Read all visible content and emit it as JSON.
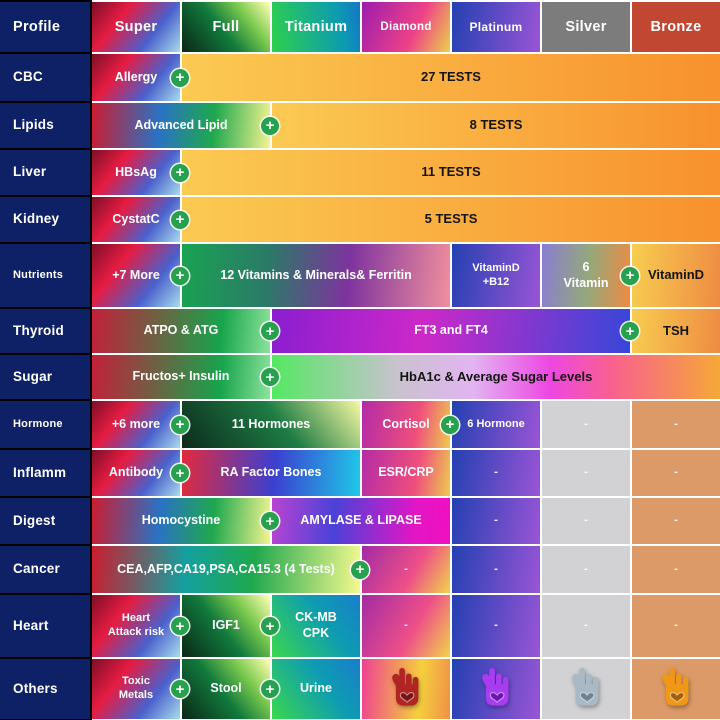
{
  "plus_symbol": "+",
  "palette": {
    "label_navy": "#0e2166",
    "plus_green": "#27a14d",
    "tests_orange": "#f8912e",
    "silver_header": "#7c7c7c",
    "bronze_header": "#c14732",
    "silver_cell": "#d2d2d4",
    "bronze_cell": "#dc9a68"
  },
  "chart_data": {
    "type": "table",
    "title": "Health checkup profile comparison",
    "columns": [
      {
        "label": "Profile",
        "bg": "navy"
      },
      {
        "label": "Super",
        "bg": "super"
      },
      {
        "label": "Full",
        "bg": "full"
      },
      {
        "label": "Titanium",
        "bg": "titanium"
      },
      {
        "label": "Diamond",
        "bg": "diamond"
      },
      {
        "label": "Platinum",
        "bg": "platinum"
      },
      {
        "label": "Silver",
        "bg": "silver"
      },
      {
        "label": "Bronze",
        "bg": "bronze"
      }
    ],
    "rows": [
      {
        "label": "CBC",
        "cells": [
          {
            "text": "Allergy",
            "span": 1,
            "bg": "super",
            "plus": true
          },
          {
            "text": "27 TESTS",
            "span": 6,
            "bg": "tests",
            "dark": true
          }
        ]
      },
      {
        "label": "Lipids",
        "cells": [
          {
            "text": "Advanced Lipid",
            "span": 2,
            "bg": "advlipid",
            "plus": true
          },
          {
            "text": "8 TESTS",
            "span": 5,
            "bg": "tests",
            "dark": true
          }
        ]
      },
      {
        "label": "Liver",
        "cells": [
          {
            "text": "HBsAg",
            "span": 1,
            "bg": "super",
            "plus": true
          },
          {
            "text": "11 TESTS",
            "span": 6,
            "bg": "tests",
            "dark": true
          }
        ]
      },
      {
        "label": "Kidney",
        "cells": [
          {
            "text": "CystatC",
            "span": 1,
            "bg": "super",
            "plus": true
          },
          {
            "text": "5 TESTS",
            "span": 6,
            "bg": "tests",
            "dark": true
          }
        ]
      },
      {
        "label": "Nutrients",
        "cells": [
          {
            "text": "+7 More",
            "span": 1,
            "bg": "super",
            "plus": true
          },
          {
            "text": "12 Vitamins & Minerals& Ferritin",
            "span": 3,
            "bg": "vits12"
          },
          {
            "text": "VitaminD\n+B12",
            "span": 1,
            "bg": "platinum",
            "small": true
          },
          {
            "text": "6\nVitamin",
            "span": 1,
            "bg": "sixvit",
            "plus": true
          },
          {
            "text": "VitaminD",
            "span": 1,
            "bg": "gold",
            "dark": true
          }
        ]
      },
      {
        "label": "Thyroid",
        "cells": [
          {
            "text": "ATPO & ATG",
            "span": 2,
            "bg": "redgreen",
            "plus": true
          },
          {
            "text": "FT3 and FT4",
            "span": 4,
            "bg": "ft34",
            "plus": true
          },
          {
            "text": "TSH",
            "span": 1,
            "bg": "gold",
            "dark": true
          }
        ]
      },
      {
        "label": "Sugar",
        "cells": [
          {
            "text": "Fructos+ Insulin",
            "span": 2,
            "bg": "redgreen",
            "plus": true
          },
          {
            "text": "HbA1c & Average Sugar Levels",
            "span": 5,
            "bg": "hba1c",
            "dark": true
          }
        ]
      },
      {
        "label": "Hormone",
        "cells": [
          {
            "text": "+6 more",
            "span": 1,
            "bg": "super",
            "plus": true
          },
          {
            "text": "11 Hormones",
            "span": 2,
            "bg": "hormones11"
          },
          {
            "text": "Cortisol",
            "span": 1,
            "bg": "cortisol",
            "plus": true
          },
          {
            "text": "6 Hormone",
            "span": 1,
            "bg": "platinum",
            "small": true
          },
          {
            "text": "-",
            "span": 1,
            "bg": "silvercell",
            "dash": true
          },
          {
            "text": "-",
            "span": 1,
            "bg": "bronzecell",
            "dash": true
          }
        ]
      },
      {
        "label": "Inflamm",
        "cells": [
          {
            "text": "Antibody",
            "span": 1,
            "bg": "super",
            "plus": true
          },
          {
            "text": "RA Factor Bones",
            "span": 2,
            "bg": "rafactor"
          },
          {
            "text": "ESR/CRP",
            "span": 1,
            "bg": "cortisol"
          },
          {
            "text": "-",
            "span": 1,
            "bg": "platinum",
            "dash": true
          },
          {
            "text": "-",
            "span": 1,
            "bg": "silvercell",
            "dash": true
          },
          {
            "text": "-",
            "span": 1,
            "bg": "bronzecell",
            "dash": true
          }
        ]
      },
      {
        "label": "Digest",
        "cells": [
          {
            "text": "Homocystine",
            "span": 2,
            "bg": "advlipid",
            "plus": true
          },
          {
            "text": "AMYLASE & LIPASE",
            "span": 2,
            "bg": "amylase"
          },
          {
            "text": "-",
            "span": 1,
            "bg": "platinum",
            "dash": true
          },
          {
            "text": "-",
            "span": 1,
            "bg": "silvercell",
            "dash": true
          },
          {
            "text": "-",
            "span": 1,
            "bg": "bronzecell",
            "dash": true
          }
        ]
      },
      {
        "label": "Cancer",
        "cells": [
          {
            "text": "CEA,AFP,CA19,PSA,CA15.3 (4 Tests)",
            "span": 3,
            "bg": "cancer",
            "plus": true
          },
          {
            "text": "-",
            "span": 1,
            "bg": "diamonddash",
            "dash": true
          },
          {
            "text": "-",
            "span": 1,
            "bg": "platinum",
            "dash": true
          },
          {
            "text": "-",
            "span": 1,
            "bg": "silvercell",
            "dash": true
          },
          {
            "text": "-",
            "span": 1,
            "bg": "bronzecell",
            "dash": true
          }
        ]
      },
      {
        "label": "Heart",
        "cells": [
          {
            "text": "Heart\nAttack risk",
            "span": 1,
            "bg": "super",
            "plus": true,
            "small": true
          },
          {
            "text": "IGF1",
            "span": 1,
            "bg": "full",
            "plus": true
          },
          {
            "text": "CK-MB\nCPK",
            "span": 1,
            "bg": "titaniumcell"
          },
          {
            "text": "-",
            "span": 1,
            "bg": "diamonddash",
            "dash": true
          },
          {
            "text": "-",
            "span": 1,
            "bg": "platinum",
            "dash": true
          },
          {
            "text": "-",
            "span": 1,
            "bg": "silvercell",
            "dash": true
          },
          {
            "text": "-",
            "span": 1,
            "bg": "bronzecell",
            "dash": true
          }
        ]
      },
      {
        "label": "Others",
        "cells": [
          {
            "text": "Toxic\nMetals",
            "span": 1,
            "bg": "super",
            "plus": true,
            "small": true
          },
          {
            "text": "Stool",
            "span": 1,
            "bg": "full",
            "plus": true
          },
          {
            "text": "Urine",
            "span": 1,
            "bg": "titaniumcell"
          },
          {
            "icon": "hand-heart",
            "span": 1,
            "bg": "diamondhand",
            "icon_color": "#b02424",
            "heart_color": "#7a1212"
          },
          {
            "icon": "hand-heart",
            "span": 1,
            "bg": "platinum",
            "icon_color": "#a83cf0",
            "heart_color": "#6d14b6"
          },
          {
            "icon": "hand-heart",
            "span": 1,
            "bg": "silvercell",
            "icon_color": "#a9b9c5",
            "heart_color": "#6e8191"
          },
          {
            "icon": "hand-heart",
            "span": 1,
            "bg": "bronzecell",
            "icon_color": "#f09718",
            "heart_color": "#a65f07"
          }
        ]
      }
    ]
  }
}
